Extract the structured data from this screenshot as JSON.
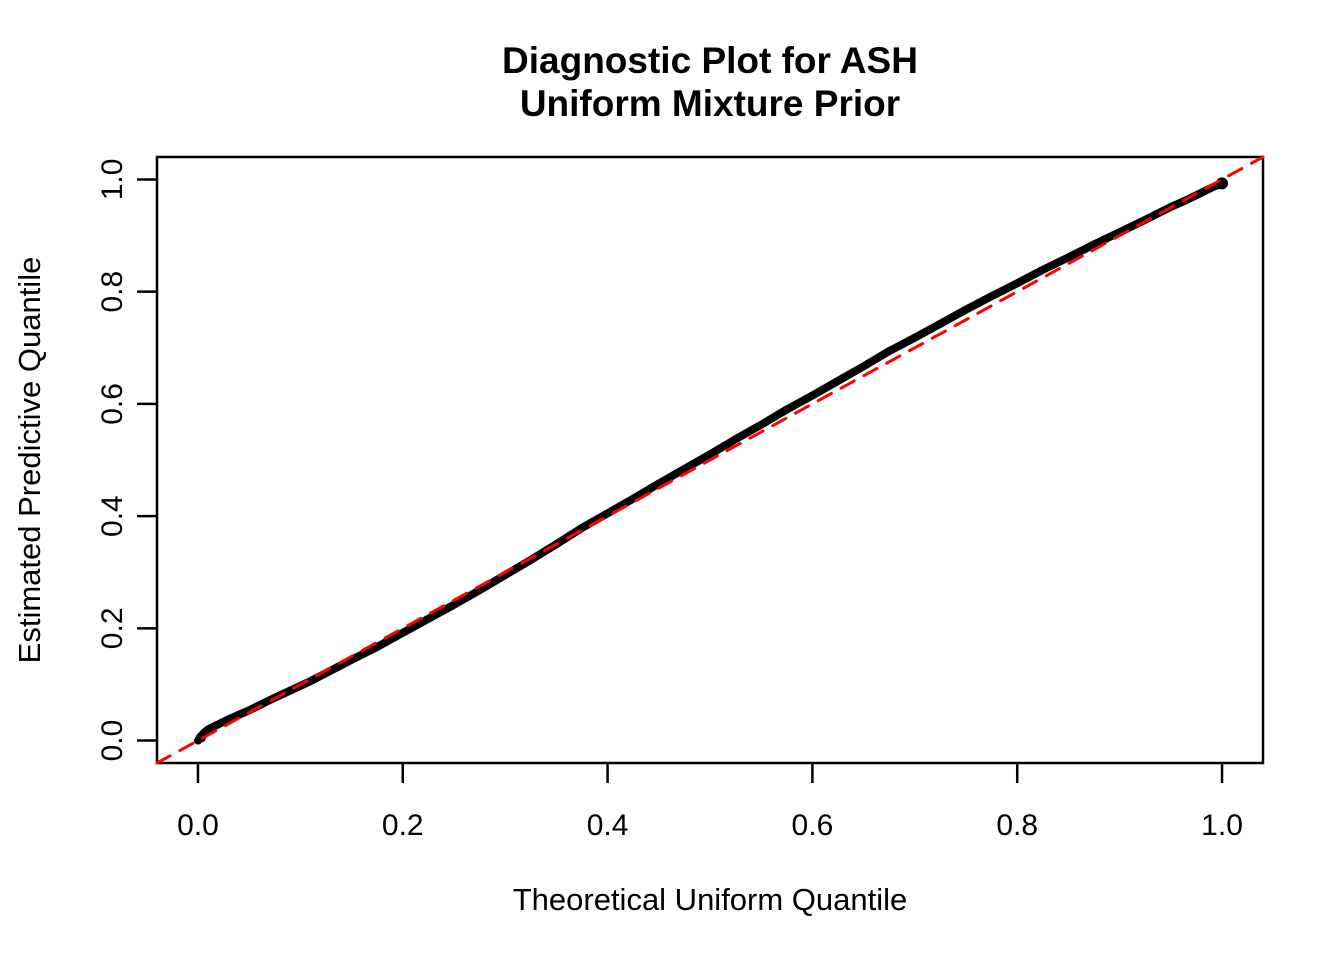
{
  "figure": {
    "background": "#ffffff",
    "foreground": "#000000"
  },
  "chart_data": {
    "type": "line",
    "kind": "qq-diagnostic-plot",
    "title": "Diagnostic Plot for ASH\nUniform Mixture Prior",
    "title_lines": [
      "Diagnostic Plot for ASH",
      "Uniform Mixture Prior"
    ],
    "xlabel": "Theoretical Uniform Quantile",
    "ylabel": "Estimated Predictive Quantile",
    "xlim": [
      -0.04,
      1.04
    ],
    "ylim": [
      -0.04,
      1.04
    ],
    "grid": false,
    "legend": null,
    "x_ticks": {
      "values": [
        0.0,
        0.2,
        0.4,
        0.6,
        0.8,
        1.0
      ],
      "labels": [
        "0.0",
        "0.2",
        "0.4",
        "0.6",
        "0.8",
        "1.0"
      ]
    },
    "y_ticks": {
      "values": [
        0.0,
        0.2,
        0.4,
        0.6,
        0.8,
        1.0
      ],
      "labels": [
        "0.0",
        "0.2",
        "0.4",
        "0.6",
        "0.8",
        "1.0"
      ]
    },
    "series": [
      {
        "name": "estimated-vs-theoretical-quantiles",
        "type": "line",
        "color": "#000000",
        "style": "solid",
        "width": 8,
        "end_dot_radius": 6,
        "points": [
          [
            0.0,
            0.0
          ],
          [
            0.003,
            0.008
          ],
          [
            0.006,
            0.014
          ],
          [
            0.01,
            0.02
          ],
          [
            0.02,
            0.029
          ],
          [
            0.03,
            0.038
          ],
          [
            0.05,
            0.054
          ],
          [
            0.07,
            0.072
          ],
          [
            0.09,
            0.089
          ],
          [
            0.11,
            0.106
          ],
          [
            0.13,
            0.125
          ],
          [
            0.15,
            0.144
          ],
          [
            0.175,
            0.167
          ],
          [
            0.2,
            0.192
          ],
          [
            0.225,
            0.217
          ],
          [
            0.25,
            0.242
          ],
          [
            0.275,
            0.268
          ],
          [
            0.3,
            0.295
          ],
          [
            0.325,
            0.322
          ],
          [
            0.35,
            0.35
          ],
          [
            0.375,
            0.379
          ],
          [
            0.4,
            0.405
          ],
          [
            0.425,
            0.431
          ],
          [
            0.45,
            0.458
          ],
          [
            0.475,
            0.484
          ],
          [
            0.5,
            0.51
          ],
          [
            0.525,
            0.537
          ],
          [
            0.55,
            0.563
          ],
          [
            0.575,
            0.59
          ],
          [
            0.6,
            0.615
          ],
          [
            0.625,
            0.641
          ],
          [
            0.65,
            0.667
          ],
          [
            0.675,
            0.694
          ],
          [
            0.7,
            0.718
          ],
          [
            0.725,
            0.743
          ],
          [
            0.75,
            0.768
          ],
          [
            0.775,
            0.792
          ],
          [
            0.8,
            0.815
          ],
          [
            0.825,
            0.839
          ],
          [
            0.85,
            0.861
          ],
          [
            0.875,
            0.884
          ],
          [
            0.9,
            0.906
          ],
          [
            0.925,
            0.928
          ],
          [
            0.95,
            0.951
          ],
          [
            0.965,
            0.963
          ],
          [
            0.975,
            0.972
          ],
          [
            0.985,
            0.981
          ],
          [
            0.992,
            0.987
          ],
          [
            0.996,
            0.99
          ],
          [
            1.0,
            0.993
          ]
        ]
      },
      {
        "name": "reference-diagonal-y-equals-x",
        "type": "line",
        "color": "#ff0000",
        "style": "dashed",
        "width": 3,
        "points": [
          [
            -0.04,
            -0.04
          ],
          [
            1.04,
            1.04
          ]
        ]
      }
    ]
  }
}
